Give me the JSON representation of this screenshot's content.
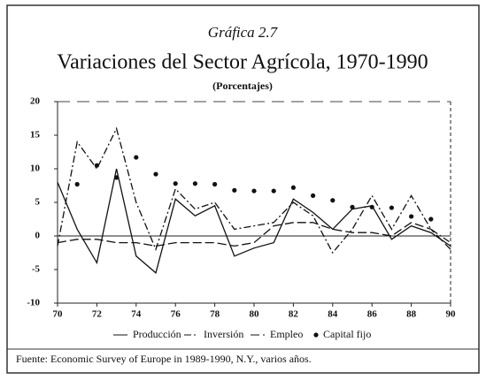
{
  "chart_data": {
    "type": "line",
    "subtitle_top": "Gráfica 2.7",
    "title": "Variaciones del Sector Agrícola, 1970-1990",
    "subtitle": "(Porcentajes)",
    "source": "Fuente: Economic Survey of Europe in 1989-1990, N.Y., varios años.",
    "x": [
      70,
      71,
      72,
      73,
      74,
      75,
      76,
      77,
      78,
      79,
      80,
      81,
      82,
      83,
      84,
      85,
      86,
      87,
      88,
      89,
      90
    ],
    "xlim": [
      70,
      90
    ],
    "xticks": [
      70,
      72,
      74,
      76,
      78,
      80,
      82,
      84,
      86,
      88,
      90
    ],
    "ylim": [
      -10,
      20
    ],
    "yticks": [
      -10,
      -5,
      0,
      5,
      10,
      15,
      20
    ],
    "series": [
      {
        "name": "Producción",
        "color": "#111",
        "dash": "none",
        "values": [
          8,
          1,
          -4,
          10,
          -3,
          -5.5,
          5.5,
          3,
          4.5,
          -3,
          -1.8,
          -1,
          5.5,
          3.5,
          1,
          4,
          4.5,
          -0.5,
          1.5,
          0.5,
          -1.5
        ]
      },
      {
        "name": "Inversión",
        "color": "#111",
        "dash": "8 3 2 3",
        "values": [
          -1.5,
          14,
          10,
          16,
          5,
          -2,
          7,
          4,
          5,
          1,
          1.5,
          2,
          5,
          3,
          -2.5,
          1,
          6,
          1,
          6,
          1,
          -1
        ]
      },
      {
        "name": "Empleo",
        "color": "#111",
        "dash": "10 4",
        "values": [
          -1,
          -0.5,
          -0.5,
          -1,
          -1,
          -1.5,
          -1,
          -1,
          -1,
          -1.5,
          -1,
          1.5,
          2,
          2,
          1,
          0.5,
          0.5,
          0,
          2,
          1,
          -2
        ]
      },
      {
        "name": "Capital fijo",
        "color": "#111",
        "marker": "dot",
        "values": [
          null,
          7.7,
          10.5,
          8.7,
          11.7,
          9.2,
          7.8,
          7.8,
          7.7,
          6.8,
          6.7,
          6.7,
          7.2,
          6,
          5.3,
          4.3,
          4.3,
          4.2,
          2.9,
          2.5,
          null
        ]
      }
    ]
  }
}
